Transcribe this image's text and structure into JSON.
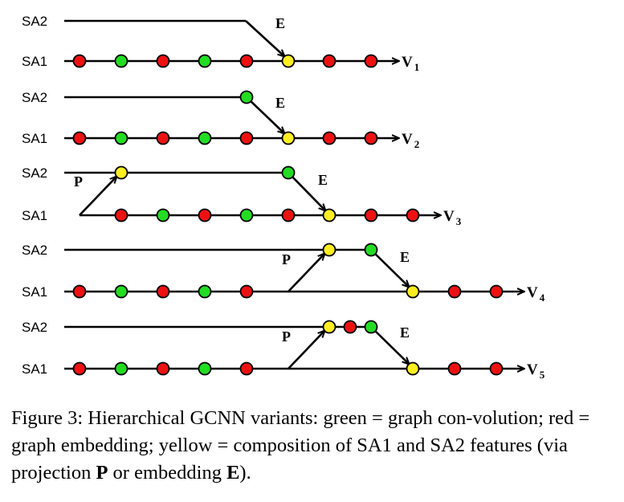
{
  "lane_labels": {
    "sa2": "SA2",
    "sa1": "SA1"
  },
  "operator_labels": {
    "projection": "P",
    "embedding": "E"
  },
  "output_symbol": "V",
  "node_colors": {
    "green": "#22dd22",
    "red": "#ee1111",
    "yellow": "#ffee22"
  },
  "rows": [
    {
      "output_index": "1",
      "sa1_nodes": [
        "red",
        "green",
        "red",
        "green",
        "red",
        "yellow",
        "red",
        "red"
      ],
      "sa2_nodes": [],
      "embedding_from": "sa2-line",
      "projection": false
    },
    {
      "output_index": "2",
      "sa1_nodes": [
        "red",
        "green",
        "red",
        "green",
        "red",
        "yellow",
        "red",
        "red"
      ],
      "sa2_nodes": [
        "green"
      ],
      "embedding_from": "sa2-node",
      "projection": false
    },
    {
      "output_index": "3",
      "sa1_nodes": [
        "red",
        "green",
        "red",
        "green",
        "red",
        "yellow",
        "red",
        "red"
      ],
      "sa2_nodes": [
        "yellow",
        "green"
      ],
      "embedding_from": "sa2-node",
      "projection": true
    },
    {
      "output_index": "4",
      "sa1_nodes": [
        "red",
        "green",
        "red",
        "green",
        "red",
        "yellow",
        "red",
        "red"
      ],
      "sa2_nodes": [
        "yellow",
        "green"
      ],
      "embedding_from": "sa2-node",
      "projection": true
    },
    {
      "output_index": "5",
      "sa1_nodes": [
        "red",
        "green",
        "red",
        "green",
        "red",
        "yellow",
        "red",
        "red"
      ],
      "sa2_nodes": [
        "yellow",
        "red",
        "green"
      ],
      "embedding_from": "sa2-node",
      "projection": true
    }
  ],
  "caption": {
    "part1": "Figure 3: Hierarchical GCNN variants: green = graph con-volution; red = graph embedding; yellow = composition of SA1 and SA2 features (via projection ",
    "bold_p": "P",
    "part2": " or embedding ",
    "bold_e": "E",
    "part3": ")."
  }
}
